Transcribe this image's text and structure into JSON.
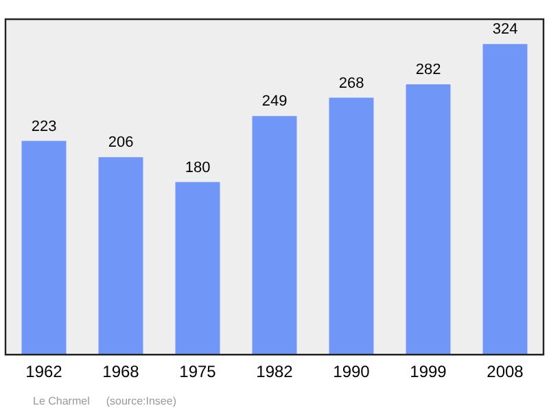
{
  "chart_data": {
    "type": "bar",
    "categories": [
      "1962",
      "1968",
      "1975",
      "1982",
      "1990",
      "1999",
      "2008"
    ],
    "values": [
      223,
      206,
      180,
      249,
      268,
      282,
      324
    ],
    "color": "#7096f8",
    "data_labels": true,
    "grid": false,
    "legend": false,
    "tick_labels": "x",
    "annotations": [
      "Le Charmel",
      "(source:Insee)"
    ]
  }
}
